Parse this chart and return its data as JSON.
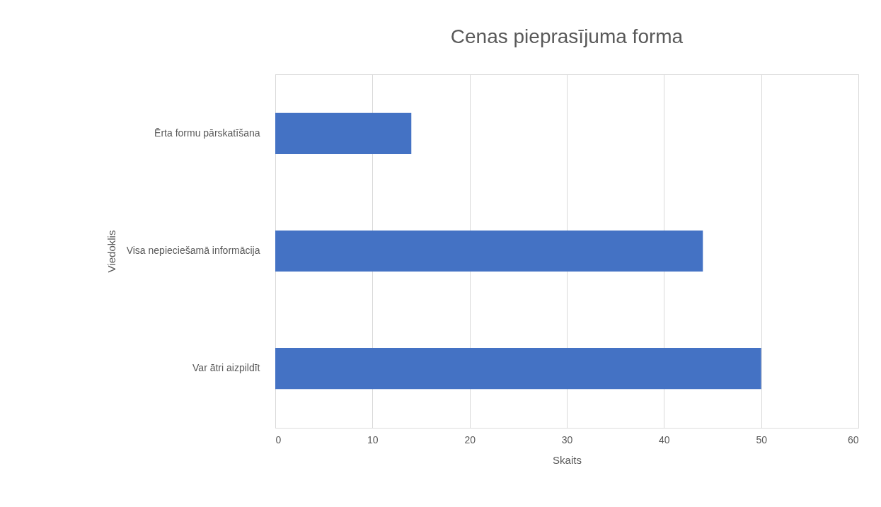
{
  "chart_data": {
    "type": "bar",
    "orientation": "horizontal",
    "title": "Cenas pieprasījuma forma",
    "xlabel": "Skaits",
    "ylabel": "Viedoklis",
    "categories": [
      "Ērta formu pārskatīšana",
      "Visa nepieciešamā informācija",
      "Var ātri aizpildīt"
    ],
    "values": [
      14,
      44,
      50
    ],
    "color": "#4472c4",
    "xlim": [
      0,
      60
    ],
    "xticks": [
      0,
      10,
      20,
      30,
      40,
      50,
      60
    ],
    "grid": "x"
  }
}
